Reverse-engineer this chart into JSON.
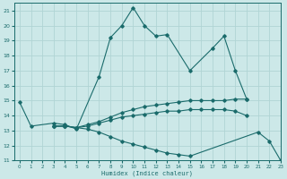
{
  "xlabel": "Humidex (Indice chaleur)",
  "xlim": [
    -0.5,
    23
  ],
  "ylim": [
    11,
    21.5
  ],
  "yticks": [
    11,
    12,
    13,
    14,
    15,
    16,
    17,
    18,
    19,
    20,
    21
  ],
  "xticks": [
    0,
    1,
    2,
    3,
    4,
    5,
    6,
    7,
    8,
    9,
    10,
    11,
    12,
    13,
    14,
    15,
    16,
    17,
    18,
    19,
    20,
    21,
    22,
    23
  ],
  "bg_color": "#cce8e8",
  "line_color": "#1a6b6b",
  "grid_color": "#b0d4d4",
  "lines": [
    {
      "x": [
        0,
        1,
        3,
        4,
        5,
        7,
        8,
        9,
        10,
        11,
        12,
        13,
        15,
        17,
        18,
        19,
        20
      ],
      "y": [
        14.9,
        13.3,
        13.5,
        13.4,
        13.1,
        16.6,
        19.2,
        20.0,
        21.2,
        20.0,
        19.3,
        19.4,
        17.0,
        18.5,
        19.3,
        17.0,
        15.1
      ]
    },
    {
      "x": [
        3,
        4,
        5,
        6,
        7,
        8,
        9,
        10,
        11,
        12,
        13,
        14,
        15,
        16,
        17,
        18,
        19,
        20
      ],
      "y": [
        13.3,
        13.3,
        13.2,
        13.4,
        13.6,
        13.9,
        14.2,
        14.4,
        14.6,
        14.7,
        14.8,
        14.9,
        15.0,
        15.0,
        15.0,
        15.0,
        15.1,
        15.1
      ]
    },
    {
      "x": [
        3,
        4,
        5,
        6,
        7,
        8,
        9,
        10,
        11,
        12,
        13,
        14,
        15,
        16,
        17,
        18,
        19,
        20
      ],
      "y": [
        13.3,
        13.3,
        13.2,
        13.3,
        13.5,
        13.7,
        13.9,
        14.0,
        14.1,
        14.2,
        14.3,
        14.3,
        14.4,
        14.4,
        14.4,
        14.4,
        14.3,
        14.0
      ]
    },
    {
      "x": [
        3,
        4,
        5,
        6,
        7,
        8,
        9,
        10,
        11,
        12,
        13,
        14,
        15,
        21,
        22,
        23
      ],
      "y": [
        13.3,
        13.3,
        13.2,
        13.1,
        12.9,
        12.6,
        12.3,
        12.1,
        11.9,
        11.7,
        11.5,
        11.4,
        11.3,
        12.9,
        12.3,
        11.0
      ]
    }
  ]
}
